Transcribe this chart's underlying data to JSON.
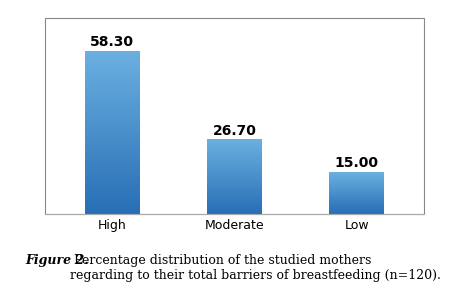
{
  "categories": [
    "High",
    "Moderate",
    "Low"
  ],
  "values": [
    58.3,
    26.7,
    15.0
  ],
  "bar_color_top": "#4f9fd4",
  "bar_color_bottom": "#2255a4",
  "bar_width": 0.45,
  "ylim": [
    0,
    70
  ],
  "tick_fontsize": 9,
  "value_fontsize": 10,
  "caption_fontsize": 9,
  "background_color": "#ffffff",
  "box_color": "#888888",
  "bottom_line_color": "#aaaaaa"
}
